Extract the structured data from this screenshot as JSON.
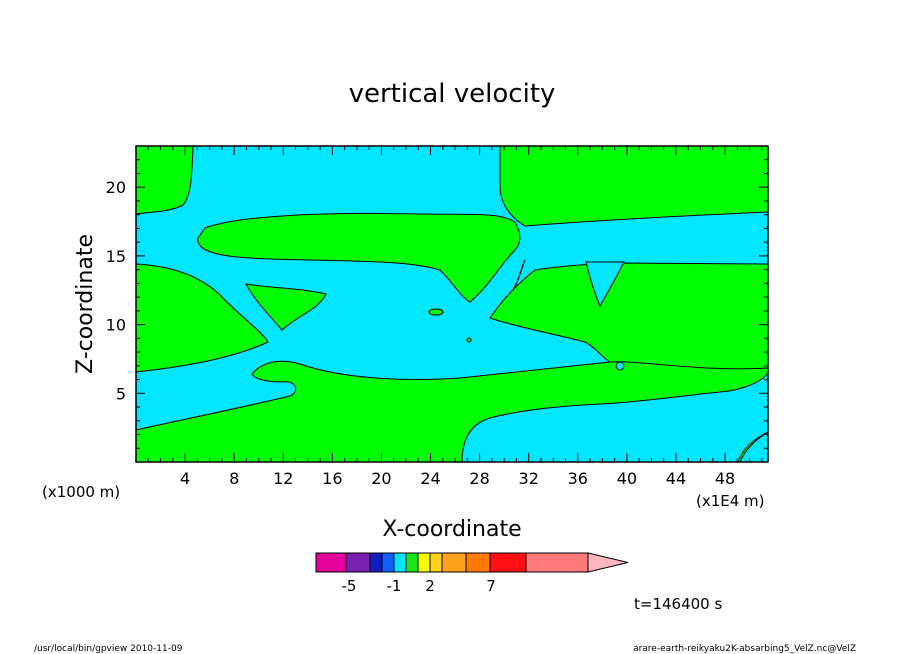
{
  "chart_data": {
    "type": "heatmap",
    "title": "vertical velocity",
    "xlabel": "X-coordinate",
    "ylabel": "Z-coordinate",
    "x_unit_left": "(x1000 m)",
    "x_unit_right": "(x1E4 m)",
    "xlim": [
      0,
      51.5
    ],
    "ylim": [
      0,
      23
    ],
    "x_ticks": [
      "4",
      "8",
      "12",
      "16",
      "20",
      "24",
      "28",
      "32",
      "36",
      "40",
      "44",
      "48"
    ],
    "y_ticks": [
      "5",
      "10",
      "15",
      "20"
    ],
    "legend": {
      "colors": [
        "#e6009e",
        "#7b1fb3",
        "#1020c0",
        "#1060ff",
        "#00e6ff",
        "#19e619",
        "#ffff00",
        "#ffd21a",
        "#ffa21a",
        "#ff7a00",
        "#ff1010",
        "#ff7a7a",
        "#ffb6c1"
      ],
      "labels": [
        "-5",
        "-1",
        "2",
        "7"
      ]
    },
    "field_colors": {
      "positive": "#00ff00",
      "negative": "#00e6ff"
    },
    "time_label": "t=146400 s"
  },
  "footer": {
    "left": "/usr/local/bin/gpview  2010-11-09",
    "right": "arare-earth-reikyaku2K-absarbing5_VelZ.nc@VelZ"
  }
}
